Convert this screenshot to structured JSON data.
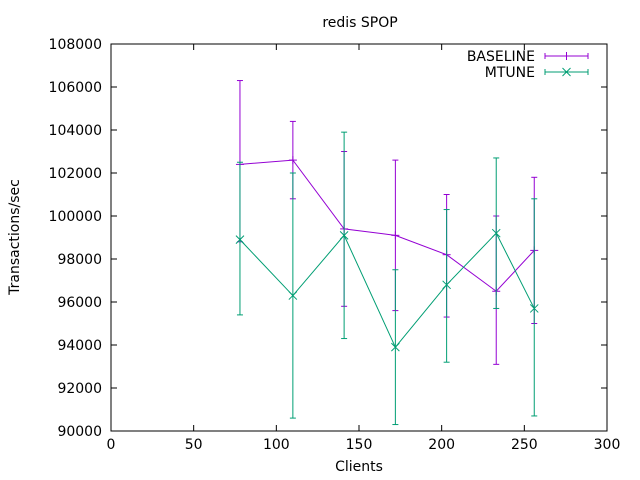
{
  "chart_data": {
    "type": "line",
    "title": "redis SPOP",
    "xlabel": "Clients",
    "ylabel": "Transactions/sec",
    "xlim": [
      0,
      300
    ],
    "ylim": [
      90000,
      108000
    ],
    "xticks": [
      0,
      50,
      100,
      150,
      200,
      250,
      300
    ],
    "yticks": [
      90000,
      92000,
      94000,
      96000,
      98000,
      100000,
      102000,
      104000,
      106000,
      108000
    ],
    "xtick_labels": [
      "0",
      "50",
      "100",
      "150",
      "200",
      "250",
      "300"
    ],
    "ytick_labels": [
      "90000",
      "92000",
      "94000",
      "96000",
      "98000",
      "100000",
      "102000",
      "104000",
      "106000",
      "108000"
    ],
    "grid": false,
    "legend_position": "top-right",
    "x": [
      78,
      110,
      141,
      172,
      203,
      233,
      256
    ],
    "series": [
      {
        "name": "BASELINE",
        "color": "#9400d3",
        "marker": "plus",
        "values": [
          102400,
          102600,
          99400,
          99100,
          98200,
          96500,
          98400
        ],
        "err_low": [
          98800,
          100800,
          95800,
          95600,
          95300,
          93100,
          95000
        ],
        "err_high": [
          106300,
          104400,
          103000,
          102600,
          101000,
          100000,
          101800
        ]
      },
      {
        "name": "MTUNE",
        "color": "#009e73",
        "marker": "x",
        "values": [
          98900,
          96300,
          99100,
          93900,
          96800,
          99200,
          95700
        ],
        "err_low": [
          95400,
          90600,
          94300,
          90300,
          93200,
          95700,
          90700
        ],
        "err_high": [
          102500,
          102000,
          103900,
          97500,
          100300,
          102700,
          100800
        ]
      }
    ]
  }
}
